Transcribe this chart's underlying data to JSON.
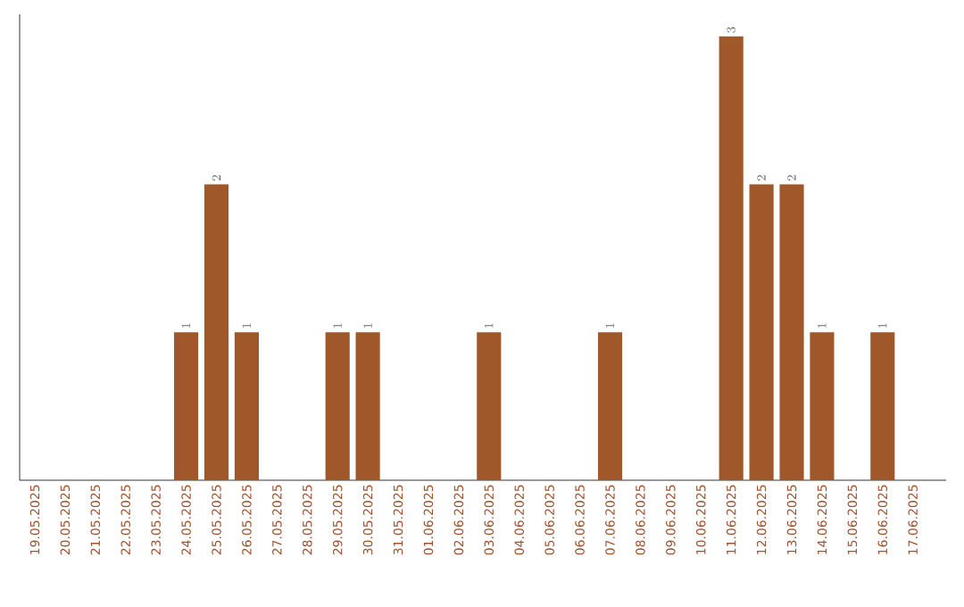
{
  "chart_data": {
    "type": "bar",
    "categories": [
      "19.05.2025",
      "20.05.2025",
      "21.05.2025",
      "22.05.2025",
      "23.05.2025",
      "24.05.2025",
      "25.05.2025",
      "26.05.2025",
      "27.05.2025",
      "28.05.2025",
      "29.05.2025",
      "30.05.2025",
      "31.05.2025",
      "01.06.2025",
      "02.06.2025",
      "03.06.2025",
      "04.06.2025",
      "05.06.2025",
      "06.06.2025",
      "07.06.2025",
      "08.06.2025",
      "09.06.2025",
      "10.06.2025",
      "11.06.2025",
      "12.06.2025",
      "13.06.2025",
      "14.06.2025",
      "15.06.2025",
      "16.06.2025",
      "17.06.2025"
    ],
    "values": [
      null,
      null,
      null,
      null,
      null,
      1,
      2,
      1,
      null,
      null,
      1,
      1,
      null,
      null,
      null,
      1,
      null,
      null,
      null,
      1,
      null,
      null,
      null,
      3,
      2,
      2,
      1,
      null,
      1,
      null
    ],
    "color": "#a0582a",
    "ylim": [
      0,
      3.15
    ],
    "data_labels": true
  }
}
